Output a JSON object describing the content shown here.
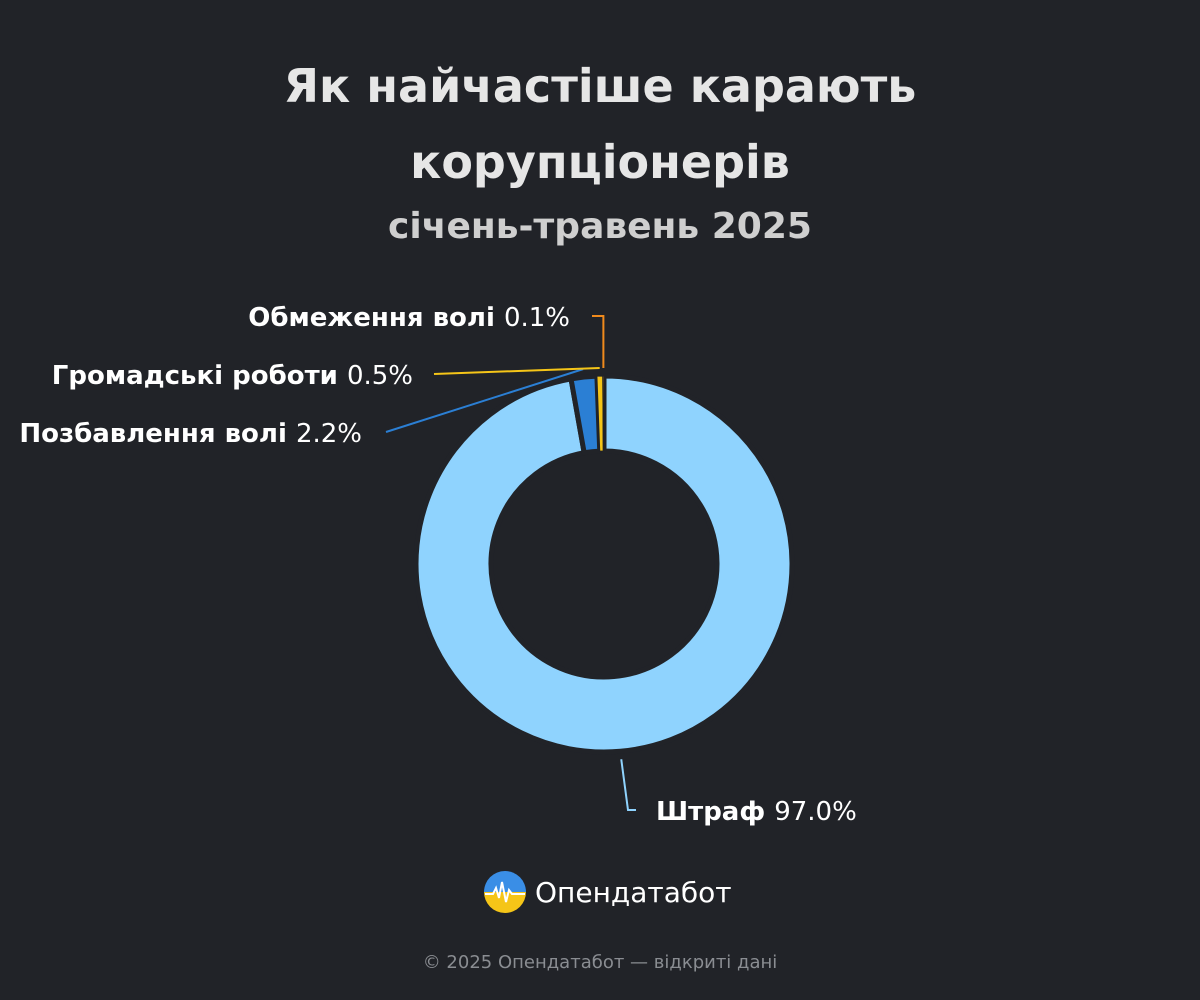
{
  "header": {
    "title_line1": "Як найчастіше карають",
    "title_line2": "корупціонерів",
    "subtitle": "січень-травень 2025"
  },
  "chart_data": {
    "type": "pie",
    "variant": "donut",
    "title": "Як найчастіше карають корупціонерів",
    "subtitle": "січень-травень 2025",
    "slices": [
      {
        "label": "Штраф",
        "value": 97.0,
        "display": "97.0%",
        "color": "#8fd3fe"
      },
      {
        "label": "Позбавлення волі",
        "value": 2.2,
        "display": "2.2%",
        "color": "#2b7fd4"
      },
      {
        "label": "Громадські роботи",
        "value": 0.5,
        "display": "0.5%",
        "color": "#f5c518"
      },
      {
        "label": "Обмеження волі",
        "value": 0.1,
        "display": "0.1%",
        "color": "#f08a1c"
      }
    ]
  },
  "logo": {
    "text": "Опендатабот",
    "icon": "opendatabot-logo-icon"
  },
  "footer": {
    "text": "© 2025 Опендатабот — відкриті дані"
  }
}
